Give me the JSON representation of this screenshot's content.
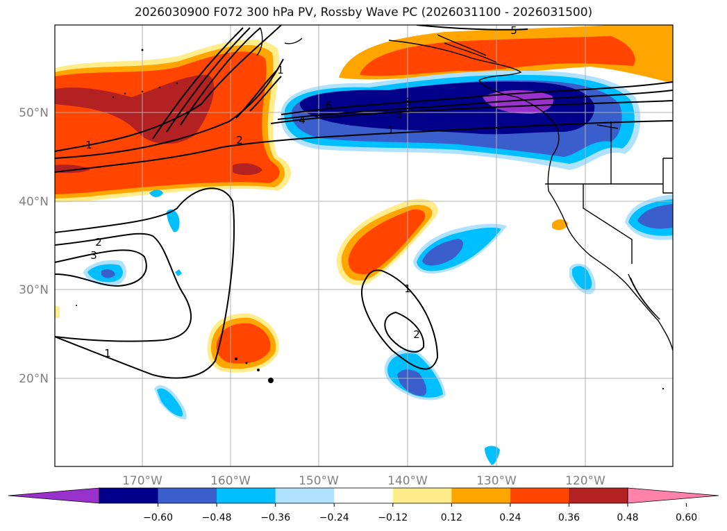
{
  "title": "2026030900 F072 300 hPa PV, Rossby Wave PC (2026031100 - 2026031500)",
  "lon_labels": [
    "170°W",
    "160°W",
    "150°W",
    "140°W",
    "130°W",
    "120°W"
  ],
  "lat_labels": [
    "50°N",
    "40°N",
    "30°N",
    "20°N"
  ],
  "colorbar": {
    "colors": [
      "#9932cc",
      "#00008b",
      "#3a5fcd",
      "#00bfff",
      "#b0e2ff",
      "#ffffff",
      "#ffec8b",
      "#ffa500",
      "#ff4500",
      "#b22222",
      "#ff82ab"
    ],
    "tick_labels": [
      "−0.60",
      "−0.48",
      "−0.36",
      "−0.24",
      "−0.12",
      "0.12",
      "0.24",
      "0.36",
      "0.48",
      "0.60"
    ]
  },
  "contour_labels": [
    "1",
    "2",
    "4",
    "6",
    "5",
    "3",
    "1",
    "1",
    "2",
    "3",
    "1",
    "1",
    "2",
    "5"
  ],
  "colors": {
    "contour": "#000000",
    "grid": "#b0b0b0",
    "tick_text": "#808080"
  }
}
